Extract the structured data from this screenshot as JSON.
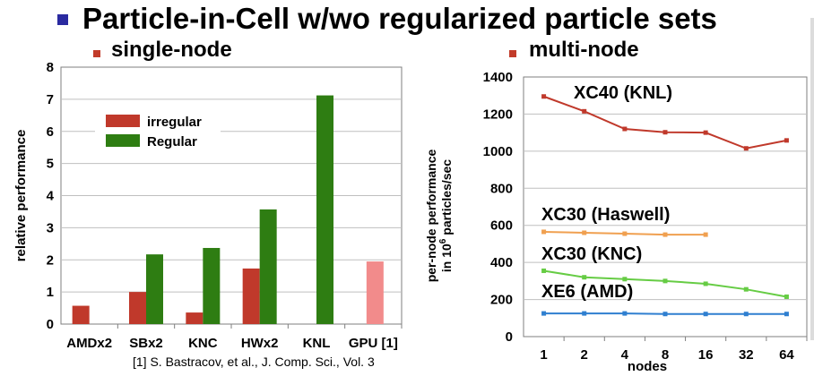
{
  "title": "Particle-in-Cell w/wo regularized particle sets",
  "left_subtitle": "single-node",
  "right_subtitle": "multi-node",
  "footnote": "[1] S. Bastracov, et al., J. Comp. Sci., Vol. 3",
  "colors": {
    "irregular": "#c0392b",
    "regular": "#2e7d12",
    "gpu": "#f28b8b",
    "xc40": "#c0392b",
    "haswell": "#f0a050",
    "knc": "#66cc44",
    "xe6": "#2f7fd0",
    "title_bullet": "#2a2aa0",
    "sub_bullet": "#c23b2a"
  },
  "chart_data": [
    {
      "type": "bar",
      "title": "single-node",
      "xlabel": "",
      "ylabel": "relative performance",
      "ylim": [
        0,
        8
      ],
      "yticks": [
        0,
        1,
        2,
        3,
        4,
        5,
        6,
        7,
        8
      ],
      "grid": true,
      "legend": "top-left",
      "categories": [
        "AMDx2",
        "SBx2",
        "KNC",
        "HWx2",
        "KNL",
        "GPU [1]"
      ],
      "series": [
        {
          "name": "irregular",
          "values": [
            0.57,
            1.0,
            0.36,
            1.73,
            null,
            null
          ]
        },
        {
          "name": "Regular",
          "values": [
            null,
            2.17,
            2.37,
            3.57,
            7.12,
            null
          ]
        }
      ],
      "extra_bar": {
        "category": "GPU [1]",
        "value": 1.95
      }
    },
    {
      "type": "line",
      "title": "multi-node",
      "xlabel": "nodes",
      "ylabel_line1": "per-node performance",
      "ylabel_line2_prefix": "in 10",
      "ylabel_sup": "6",
      "ylabel_line2_suffix": " particles/sec",
      "ylim": [
        0,
        1400
      ],
      "yticks": [
        0,
        200,
        400,
        600,
        800,
        1000,
        1200,
        1400
      ],
      "grid": true,
      "x": [
        "1",
        "2",
        "4",
        "8",
        "16",
        "32",
        "64"
      ],
      "series": [
        {
          "name": "XC40 (KNL)",
          "values": [
            1295,
            1215,
            1120,
            1102,
            1100,
            1015,
            1058
          ]
        },
        {
          "name": "XC30 (Haswell)",
          "values": [
            565,
            560,
            555,
            550,
            550,
            null,
            null
          ]
        },
        {
          "name": "XC30 (KNC)",
          "values": [
            355,
            320,
            310,
            300,
            285,
            255,
            215
          ]
        },
        {
          "name": "XE6 (AMD)",
          "values": [
            125,
            125,
            125,
            122,
            122,
            122,
            122
          ]
        }
      ]
    }
  ]
}
